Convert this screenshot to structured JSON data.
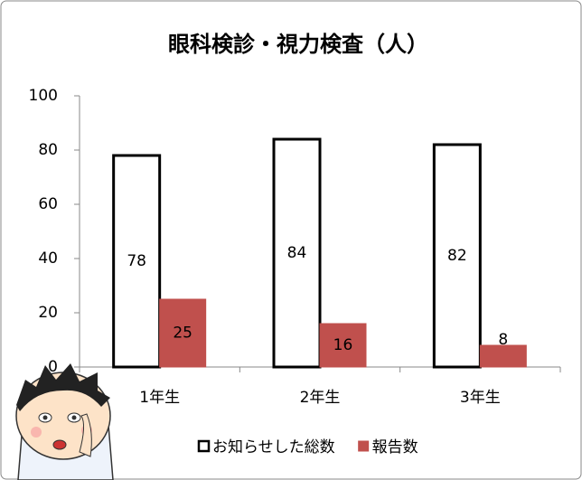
{
  "chart_data": {
    "type": "bar",
    "title": "眼科検診・視力検査（人）",
    "categories": [
      "1年生",
      "2年生",
      "3年生"
    ],
    "series": [
      {
        "name": "お知らせした総数",
        "color": "#ffffff",
        "values": [
          78,
          84,
          82
        ]
      },
      {
        "name": "報告数",
        "color": "#c0504d",
        "values": [
          25,
          16,
          8
        ]
      }
    ],
    "ylim": [
      0,
      100
    ],
    "yticks": [
      0,
      20,
      40,
      60,
      80,
      100
    ],
    "grid": false,
    "legend": "bottom"
  }
}
